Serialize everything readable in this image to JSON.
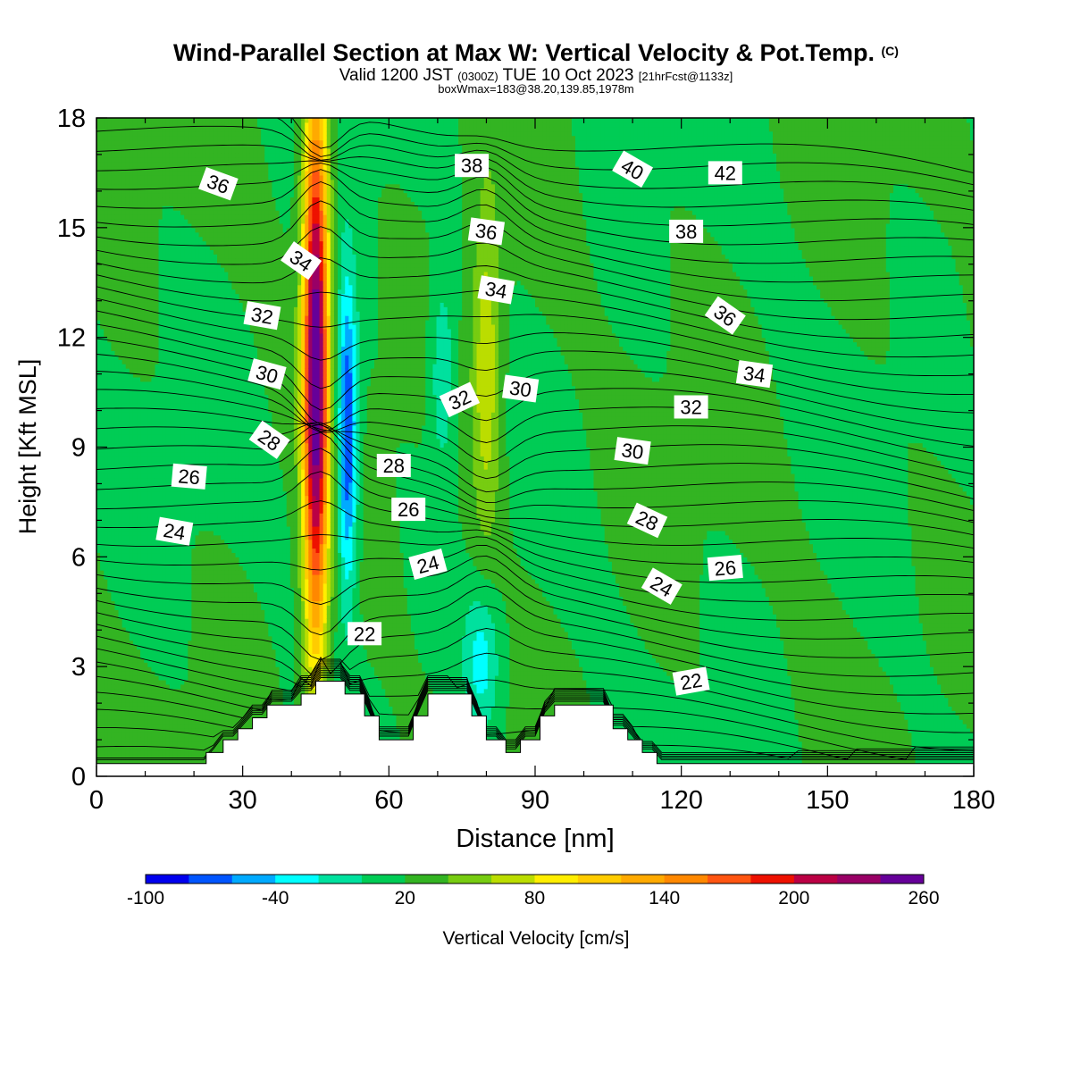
{
  "title": {
    "main": "Wind-Parallel Section at Max W: Vertical Velocity & Pot.Temp.",
    "copyright": "(C)",
    "valid_prefix": "Valid 1200 JST",
    "utc": "(0300Z)",
    "valid_suffix": "TUE 10 Oct 2023",
    "forecast": "[21hrFcst@1133z]",
    "box_info": "boxWmax=183@38.20,139.85,1978m"
  },
  "chart_data": {
    "type": "heatmap",
    "xlabel": "Distance [nm]",
    "ylabel": "Height [Kft MSL]",
    "xlim": [
      0,
      180
    ],
    "ylim": [
      0,
      18
    ],
    "x_ticks": [
      0,
      30,
      60,
      90,
      120,
      150,
      180
    ],
    "y_ticks": [
      0,
      3,
      6,
      9,
      12,
      15,
      18
    ],
    "colorbar": {
      "label": "Vertical Velocity [cm/s]",
      "range": [
        -100,
        260
      ],
      "step": 20,
      "tick_labels": [
        -100,
        -40,
        20,
        80,
        140,
        200,
        260
      ],
      "colors": [
        "#0000ee",
        "#0055ff",
        "#00aaff",
        "#00ffff",
        "#00e19e",
        "#00cc55",
        "#33b422",
        "#77cc11",
        "#bbdd00",
        "#ffee00",
        "#ffcc00",
        "#ffaa00",
        "#ff8800",
        "#ff5511",
        "#ee1100",
        "#bb0044",
        "#990066",
        "#660099"
      ]
    },
    "background_value": 20,
    "w_features": [
      {
        "name": "main updraft",
        "x": 45,
        "z": 11.2,
        "peak": 250,
        "sx": 1.8,
        "sz": 5.5
      },
      {
        "name": "downdraft core",
        "x": 51.5,
        "z": 9.3,
        "peak": -100,
        "sx": 1.4,
        "sz": 3.0
      },
      {
        "name": "weak updraft",
        "x": 80,
        "z": 11.2,
        "peak": 65,
        "sx": 2.2,
        "sz": 3.3
      },
      {
        "name": "low-level downdraft",
        "x": 79,
        "z": 3.2,
        "peak": -45,
        "sx": 2.6,
        "sz": 1.4
      },
      {
        "name": "mid-level downdraft",
        "x": 71,
        "z": 11.0,
        "peak": -35,
        "sx": 1.6,
        "sz": 1.8
      }
    ],
    "terrain_kft": [
      [
        0,
        0.35
      ],
      [
        22.5,
        0.35
      ],
      [
        22.5,
        0.65
      ],
      [
        26,
        0.65
      ],
      [
        26,
        1.0
      ],
      [
        29,
        1.0
      ],
      [
        29,
        1.3
      ],
      [
        32,
        1.3
      ],
      [
        32,
        1.6
      ],
      [
        35,
        1.6
      ],
      [
        35,
        1.95
      ],
      [
        42,
        1.95
      ],
      [
        42,
        2.25
      ],
      [
        45,
        2.25
      ],
      [
        45,
        2.6
      ],
      [
        51,
        2.6
      ],
      [
        51,
        2.25
      ],
      [
        55,
        2.25
      ],
      [
        55,
        1.65
      ],
      [
        58,
        1.65
      ],
      [
        58,
        1.0
      ],
      [
        65,
        1.0
      ],
      [
        65,
        1.65
      ],
      [
        68,
        1.65
      ],
      [
        68,
        2.25
      ],
      [
        77,
        2.25
      ],
      [
        77,
        1.65
      ],
      [
        80,
        1.65
      ],
      [
        80,
        1.0
      ],
      [
        84,
        1.0
      ],
      [
        84,
        0.65
      ],
      [
        87,
        0.65
      ],
      [
        87,
        1.0
      ],
      [
        91,
        1.0
      ],
      [
        91,
        1.65
      ],
      [
        94,
        1.65
      ],
      [
        94,
        1.95
      ],
      [
        106,
        1.95
      ],
      [
        106,
        1.3
      ],
      [
        109,
        1.3
      ],
      [
        109,
        1.0
      ],
      [
        112,
        1.0
      ],
      [
        112,
        0.65
      ],
      [
        115,
        0.65
      ],
      [
        115,
        0.35
      ],
      [
        180,
        0.35
      ]
    ],
    "theta_contours": {
      "unit_label_note": "potential temperature contour labels",
      "labels": [
        {
          "text": "36",
          "x": 25,
          "z": 16.2,
          "angle": 20
        },
        {
          "text": "34",
          "x": 42,
          "z": 14.1,
          "angle": 35
        },
        {
          "text": "32",
          "x": 34,
          "z": 12.6,
          "angle": 10
        },
        {
          "text": "30",
          "x": 35,
          "z": 11.0,
          "angle": 15
        },
        {
          "text": "28",
          "x": 35.5,
          "z": 9.2,
          "angle": 35
        },
        {
          "text": "26",
          "x": 19,
          "z": 8.2,
          "angle": 5
        },
        {
          "text": "24",
          "x": 16,
          "z": 6.7,
          "angle": 10
        },
        {
          "text": "38",
          "x": 77,
          "z": 16.7,
          "angle": 0
        },
        {
          "text": "36",
          "x": 80,
          "z": 14.9,
          "angle": 8
        },
        {
          "text": "34",
          "x": 82,
          "z": 13.3,
          "angle": 10
        },
        {
          "text": "32",
          "x": 74.5,
          "z": 10.3,
          "angle": -25
        },
        {
          "text": "30",
          "x": 87,
          "z": 10.6,
          "angle": 8
        },
        {
          "text": "28",
          "x": 61,
          "z": 8.5,
          "angle": 0
        },
        {
          "text": "26",
          "x": 64,
          "z": 7.3,
          "angle": 0
        },
        {
          "text": "24",
          "x": 68,
          "z": 5.8,
          "angle": -15
        },
        {
          "text": "22",
          "x": 55,
          "z": 3.9,
          "angle": 0
        },
        {
          "text": "40",
          "x": 110,
          "z": 16.6,
          "angle": 30
        },
        {
          "text": "42",
          "x": 129,
          "z": 16.5,
          "angle": 0
        },
        {
          "text": "38",
          "x": 121,
          "z": 14.9,
          "angle": 0
        },
        {
          "text": "36",
          "x": 129,
          "z": 12.6,
          "angle": 35
        },
        {
          "text": "34",
          "x": 135,
          "z": 11.0,
          "angle": 8
        },
        {
          "text": "32",
          "x": 122,
          "z": 10.1,
          "angle": 0
        },
        {
          "text": "30",
          "x": 110,
          "z": 8.9,
          "angle": 8
        },
        {
          "text": "28",
          "x": 113,
          "z": 7.0,
          "angle": 25
        },
        {
          "text": "26",
          "x": 129,
          "z": 5.7,
          "angle": -5
        },
        {
          "text": "24",
          "x": 116,
          "z": 5.2,
          "angle": 30
        },
        {
          "text": "22",
          "x": 122,
          "z": 2.6,
          "angle": -10
        }
      ]
    }
  }
}
